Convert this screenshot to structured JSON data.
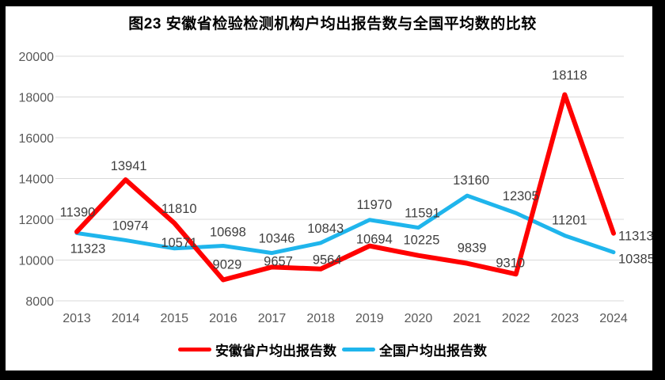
{
  "chart_data": {
    "type": "line",
    "title": "图23 安徽省检验检测机构户均出报告数与全国平均数的比较",
    "categories": [
      "2013",
      "2014",
      "2015",
      "2016",
      "2017",
      "2018",
      "2019",
      "2020",
      "2021",
      "2022",
      "2023",
      "2024"
    ],
    "series": [
      {
        "name": "安徽省户均出报告数",
        "color": "#FF0000",
        "values": [
          11390,
          13941,
          11810,
          9029,
          9657,
          9564,
          10694,
          10225,
          9839,
          9310,
          18118,
          11313
        ]
      },
      {
        "name": "全国户均出报告数",
        "color": "#1FB5EC",
        "values": [
          11323,
          10974,
          10571,
          10698,
          10346,
          10843,
          11970,
          11591,
          13160,
          12305,
          11201,
          10385
        ]
      }
    ],
    "y_ticks": [
      20000,
      18000,
      16000,
      14000,
      12000,
      10000,
      8000
    ],
    "ylim": [
      8000,
      20000
    ],
    "grid": "horizontal",
    "legend_position": "bottom",
    "data_labels": "shown"
  },
  "colors": {
    "grid": "#D9D9D9",
    "tick_text": "#595959",
    "data_label": "#404040",
    "frame": "#000000"
  }
}
